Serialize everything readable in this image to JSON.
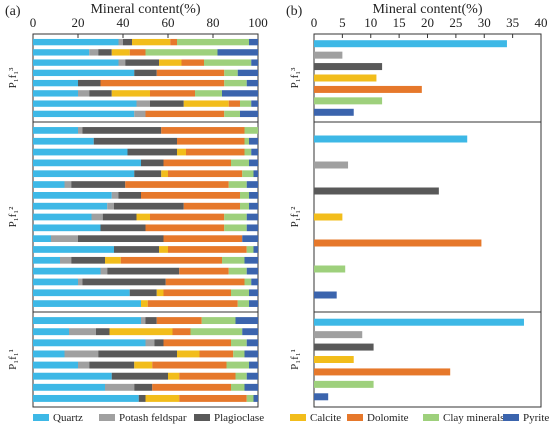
{
  "colors": {
    "Quartz": "#3db8e6",
    "Potash feldspar": "#a0a0a0",
    "Plagioclase": "#595959",
    "Calcite": "#f2bd1b",
    "Dolomite": "#e6782b",
    "Clay minerals": "#9ed07c",
    "Pyrite": "#3b64ad"
  },
  "minerals": [
    "Quartz",
    "Potash feldspar",
    "Plagioclase",
    "Calcite",
    "Dolomite",
    "Clay minerals",
    "Pyrite"
  ],
  "chart_data": [
    {
      "panel": "(a)",
      "type": "bar",
      "orientation": "horizontal",
      "stacked": true,
      "xlabel": "Mineral content(%)",
      "xlim": [
        0,
        100
      ],
      "xticks": [
        0,
        20,
        40,
        60,
        80,
        100
      ],
      "series_order": [
        "Quartz",
        "Potash feldspar",
        "Plagioclase",
        "Calcite",
        "Dolomite",
        "Clay minerals",
        "Pyrite"
      ],
      "groups": [
        {
          "label": "P₁f₁³",
          "samples": [
            [
              38,
              2,
              4,
              17,
              3,
              32,
              4
            ],
            [
              25,
              4,
              6,
              8,
              7,
              32,
              18
            ],
            [
              38,
              3,
              15,
              10,
              10,
              21,
              3
            ],
            [
              45,
              0,
              10,
              0,
              30,
              6,
              9
            ],
            [
              20,
              0,
              10,
              0,
              55,
              10,
              5
            ],
            [
              20,
              5,
              10,
              17,
              20,
              12,
              16
            ],
            [
              46,
              6,
              15,
              20,
              5,
              5,
              3
            ],
            [
              45,
              5,
              0,
              0,
              35,
              7,
              8
            ]
          ]
        },
        {
          "label": "P₁f₁²",
          "samples": [
            [
              20,
              2,
              35,
              0,
              37,
              6,
              0
            ],
            [
              27,
              0,
              37,
              0,
              30,
              2,
              4
            ],
            [
              42,
              0,
              22,
              4,
              26,
              3,
              3
            ],
            [
              48,
              0,
              10,
              0,
              30,
              8,
              4
            ],
            [
              45,
              0,
              12,
              3,
              33,
              5,
              2
            ],
            [
              14,
              3,
              24,
              0,
              46,
              8,
              5
            ],
            [
              35,
              3,
              10,
              0,
              44,
              4,
              4
            ],
            [
              33,
              3,
              31,
              0,
              25,
              4,
              4
            ],
            [
              26,
              5,
              15,
              6,
              33,
              10,
              5
            ],
            [
              30,
              0,
              20,
              0,
              35,
              10,
              5
            ],
            [
              8,
              12,
              38,
              0,
              35,
              0,
              7
            ],
            [
              36,
              0,
              20,
              4,
              35,
              3,
              2
            ],
            [
              12,
              5,
              15,
              7,
              45,
              10,
              6
            ],
            [
              30,
              3,
              32,
              0,
              22,
              8,
              5
            ],
            [
              20,
              2,
              37,
              0,
              35,
              3,
              3
            ],
            [
              43,
              0,
              12,
              3,
              30,
              8,
              4
            ],
            [
              48,
              0,
              0,
              3,
              40,
              5,
              4
            ]
          ]
        },
        {
          "label": "P₁f₁¹",
          "samples": [
            [
              48,
              2,
              5,
              0,
              20,
              15,
              10
            ],
            [
              16,
              12,
              6,
              28,
              8,
              23,
              7
            ],
            [
              50,
              4,
              4,
              0,
              30,
              7,
              5
            ],
            [
              14,
              15,
              35,
              10,
              15,
              5,
              6
            ],
            [
              20,
              5,
              20,
              8,
              33,
              10,
              4
            ],
            [
              35,
              0,
              25,
              5,
              25,
              5,
              5
            ],
            [
              32,
              13,
              8,
              0,
              35,
              6,
              6
            ],
            [
              47,
              0,
              3,
              15,
              30,
              3,
              2
            ]
          ]
        }
      ]
    },
    {
      "panel": "(b)",
      "type": "bar",
      "orientation": "horizontal",
      "xlabel": "Mineral content(%)",
      "xlim": [
        0,
        40
      ],
      "xticks": [
        0,
        5,
        10,
        15,
        20,
        25,
        30,
        35,
        40
      ],
      "series_order": [
        "Quartz",
        "Potash feldspar",
        "Plagioclase",
        "Calcite",
        "Dolomite",
        "Clay minerals",
        "Pyrite"
      ],
      "groups": [
        {
          "label": "P₁f₁³",
          "values": [
            34,
            5,
            12,
            11,
            19,
            12,
            7
          ]
        },
        {
          "label": "P₁f₁²",
          "values": [
            27,
            6,
            22,
            5,
            29.5,
            5.5,
            4
          ]
        },
        {
          "label": "P₁f₁¹",
          "values": [
            37,
            8.5,
            10.5,
            7,
            24,
            10.5,
            2.5
          ]
        }
      ]
    }
  ]
}
